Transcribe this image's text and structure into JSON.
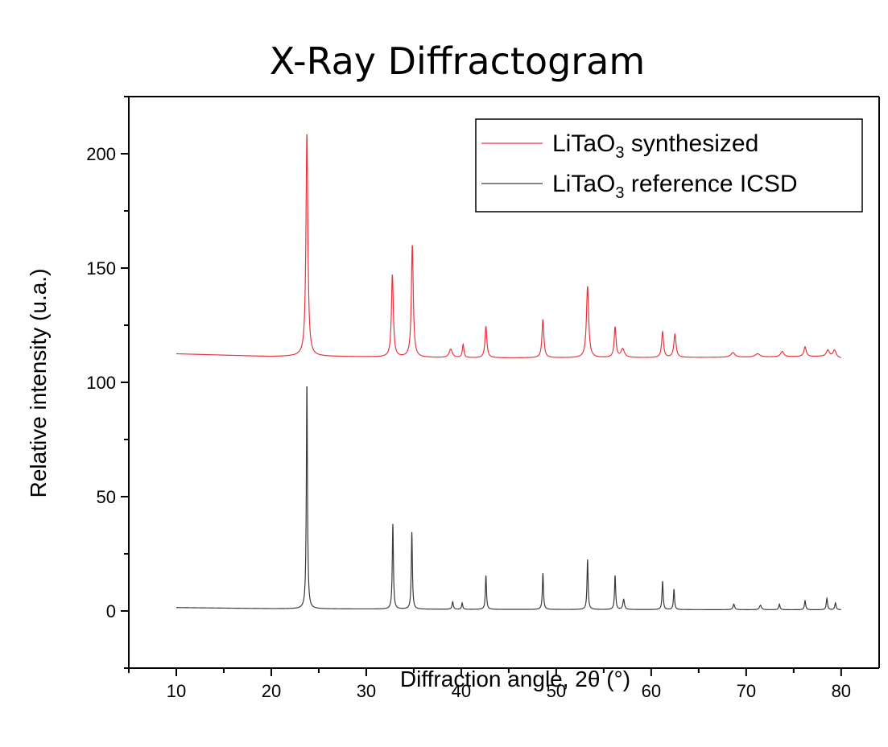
{
  "chart_data": {
    "type": "line",
    "title": "X-Ray Diffractogram",
    "xlabel": "Diffraction angle, 2θ (°)",
    "ylabel": "Relative intensity (u.a.)",
    "xlim": [
      5,
      84
    ],
    "ylim": [
      -25,
      225
    ],
    "xticks": [
      10,
      20,
      30,
      40,
      50,
      60,
      70,
      80
    ],
    "yticks": [
      0,
      50,
      100,
      150,
      200
    ],
    "grid": false,
    "legend_position": "top-right",
    "series": [
      {
        "name": "LiTaO3 synthesized",
        "legend_main": "LiTaO",
        "legend_sub": "3",
        "legend_rest": " synthesized",
        "color": "#e8343f",
        "baseline": [
          [
            10,
            112.5
          ],
          [
            20,
            111.3
          ],
          [
            23.0,
            111.5
          ],
          [
            40,
            110.7
          ],
          [
            60,
            110.8
          ],
          [
            70,
            111.0
          ],
          [
            78,
            111.3
          ],
          [
            80,
            110.5
          ]
        ],
        "peaks": [
          [
            23.75,
            209,
            0.12
          ],
          [
            32.75,
            147,
            0.12
          ],
          [
            34.85,
            160,
            0.12
          ],
          [
            38.9,
            114.5,
            0.2
          ],
          [
            40.2,
            116.5,
            0.1
          ],
          [
            42.6,
            124.5,
            0.12
          ],
          [
            48.6,
            127.5,
            0.12
          ],
          [
            53.3,
            142,
            0.14
          ],
          [
            56.2,
            124,
            0.12
          ],
          [
            57.0,
            114.5,
            0.22
          ],
          [
            61.2,
            122,
            0.12
          ],
          [
            62.5,
            121,
            0.14
          ],
          [
            68.6,
            113,
            0.25
          ],
          [
            71.2,
            112.5,
            0.3
          ],
          [
            73.8,
            113.5,
            0.2
          ],
          [
            76.2,
            115.5,
            0.15
          ],
          [
            78.6,
            114,
            0.2
          ],
          [
            79.3,
            114,
            0.2
          ]
        ]
      },
      {
        "name": "LiTaO3 reference ICSD",
        "legend_main": "LiTaO",
        "legend_sub": "3",
        "legend_rest": " reference ICSD",
        "color": "#3a3a3a",
        "baseline": [
          [
            10,
            1.5
          ],
          [
            20,
            1.0
          ],
          [
            40,
            0.7
          ],
          [
            60,
            0.6
          ],
          [
            80,
            0.5
          ]
        ],
        "peaks": [
          [
            23.75,
            100,
            0.07
          ],
          [
            32.8,
            38,
            0.07
          ],
          [
            34.8,
            34.5,
            0.07
          ],
          [
            39.1,
            4,
            0.08
          ],
          [
            40.1,
            3.5,
            0.07
          ],
          [
            42.6,
            15.5,
            0.07
          ],
          [
            48.6,
            16.5,
            0.07
          ],
          [
            53.3,
            22.5,
            0.07
          ],
          [
            56.2,
            15.5,
            0.07
          ],
          [
            57.1,
            5,
            0.1
          ],
          [
            61.2,
            13,
            0.07
          ],
          [
            62.4,
            9.5,
            0.07
          ],
          [
            68.7,
            3,
            0.1
          ],
          [
            71.5,
            2.5,
            0.12
          ],
          [
            73.5,
            3,
            0.08
          ],
          [
            76.2,
            4.5,
            0.08
          ],
          [
            78.5,
            5.5,
            0.08
          ],
          [
            79.4,
            3.5,
            0.08
          ]
        ]
      }
    ]
  }
}
